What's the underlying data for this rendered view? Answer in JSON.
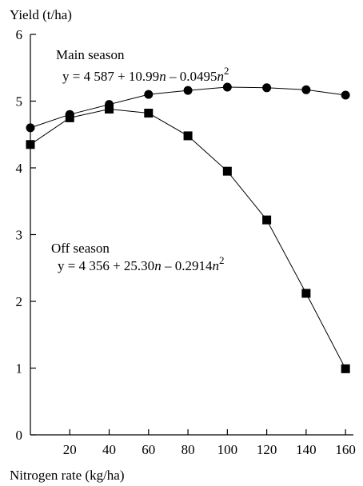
{
  "chart_data": {
    "type": "line",
    "ylabel": "Yield (t/ha)",
    "xlabel": "Nitrogen rate (kg/ha)",
    "xlim": [
      0,
      164
    ],
    "ylim": [
      0,
      6
    ],
    "x_ticks": [
      "20",
      "40",
      "60",
      "80",
      "100",
      "120",
      "140",
      "160"
    ],
    "y_ticks": [
      "0",
      "1",
      "2",
      "3",
      "4",
      "5",
      "6"
    ],
    "grid": false,
    "series": [
      {
        "name": "Main season",
        "marker": "circle",
        "equation": {
          "prefix": "y = 4 587 + 10.99",
          "var1": "n",
          "mid": " – 0.0495",
          "var2": "n",
          "exp": "2"
        },
        "x": [
          0,
          20,
          40,
          60,
          80,
          100,
          120,
          140,
          160
        ],
        "y": [
          4.6,
          4.8,
          4.95,
          5.1,
          5.16,
          5.21,
          5.2,
          5.17,
          5.09
        ]
      },
      {
        "name": "Off season",
        "marker": "square",
        "equation": {
          "prefix": "y = 4 356 + 25.30",
          "var1": "n",
          "mid": " – 0.2914",
          "var2": "n",
          "exp": "2"
        },
        "x": [
          0,
          20,
          40,
          60,
          80,
          100,
          120,
          140,
          160
        ],
        "y": [
          4.35,
          4.75,
          4.88,
          4.82,
          4.48,
          3.95,
          3.22,
          2.12,
          0.99
        ]
      }
    ]
  }
}
